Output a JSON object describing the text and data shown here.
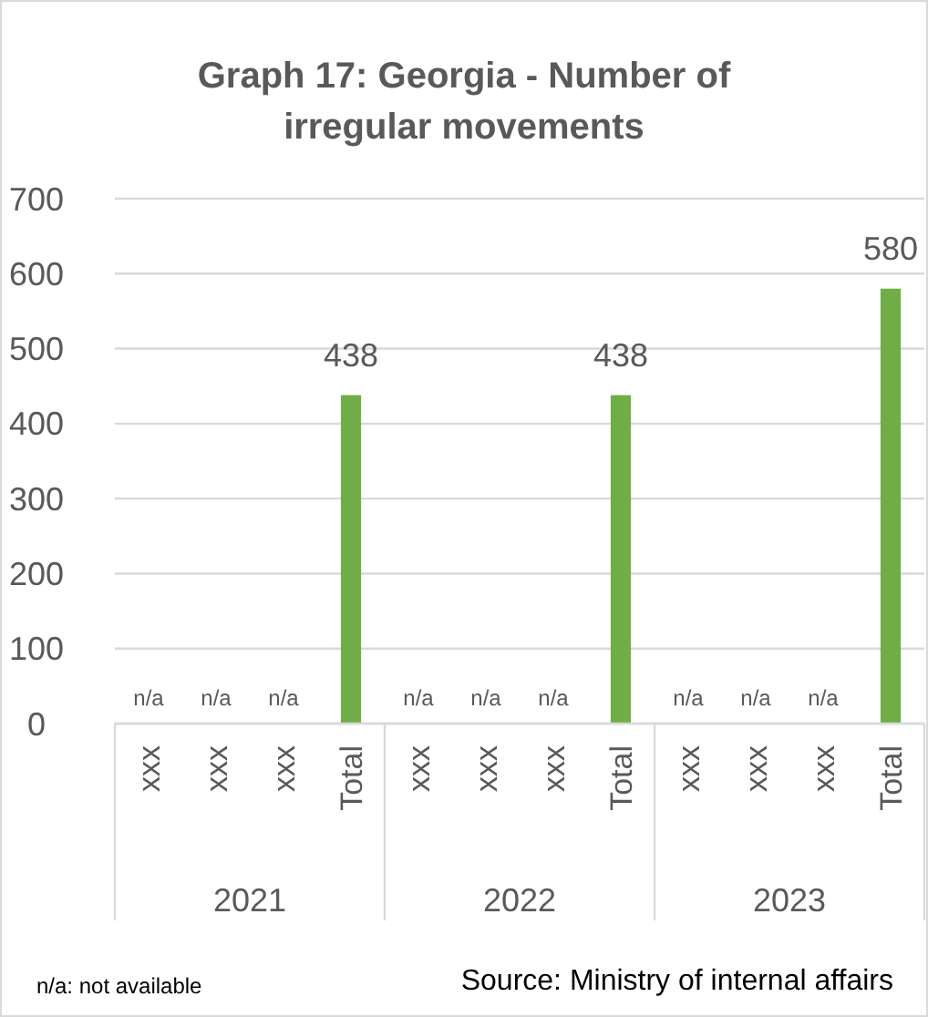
{
  "chart_data": {
    "type": "bar",
    "title": "Graph 17: Georgia - Number of irregular movements",
    "categories": [
      "xxx",
      "xxx",
      "xxx",
      "Total",
      "xxx",
      "xxx",
      "xxx",
      "Total",
      "xxx",
      "xxx",
      "xxx",
      "Total"
    ],
    "values": [
      null,
      null,
      null,
      438,
      null,
      null,
      null,
      438,
      null,
      null,
      null,
      580
    ],
    "value_labels": [
      "n/a",
      "n/a",
      "n/a",
      "438",
      "n/a",
      "n/a",
      "n/a",
      "438",
      "n/a",
      "n/a",
      "n/a",
      "580"
    ],
    "color": "#70ad47",
    "ylim": [
      0,
      700
    ],
    "yticks": [
      0,
      100,
      200,
      300,
      400,
      500,
      600,
      700
    ],
    "grid": "y",
    "annotations": [
      "2021",
      "2022",
      "2023",
      "n/a: not available",
      "Source: Ministry of internal affairs"
    ]
  }
}
